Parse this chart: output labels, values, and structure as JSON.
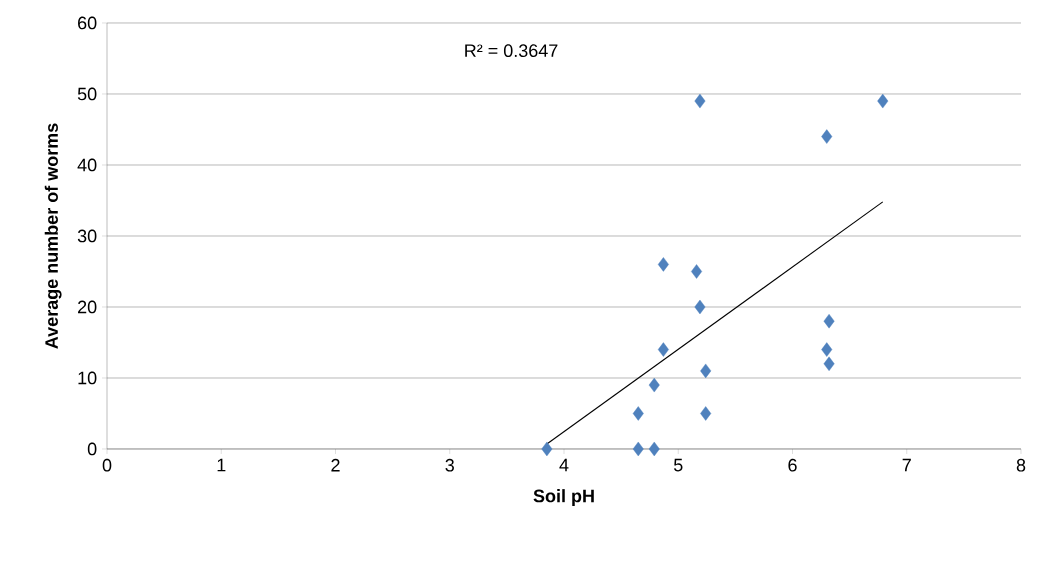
{
  "chart_data": {
    "type": "scatter",
    "xlabel": "Soil pH",
    "ylabel": "Average number of worms",
    "annotations": [
      "R² = 0.3647"
    ],
    "xlim": [
      0,
      8
    ],
    "xticks": [
      0,
      1,
      2,
      3,
      4,
      5,
      6,
      7,
      8
    ],
    "ylim": [
      0,
      60
    ],
    "yticks": [
      0,
      10,
      20,
      30,
      40,
      50,
      60
    ],
    "grid": "y",
    "series": [
      {
        "color": "#4f81bd",
        "marker": "diamond",
        "x": [
          3.85,
          4.65,
          4.79,
          4.65,
          4.79,
          4.87,
          4.87,
          5.16,
          5.19,
          5.19,
          5.24,
          5.24,
          6.3,
          6.79,
          6.32,
          6.3,
          6.32
        ],
        "values": [
          0,
          0,
          0,
          5,
          9,
          14,
          26,
          25,
          20,
          49,
          11,
          5,
          44,
          49,
          18,
          14,
          12
        ]
      },
      {
        "type": "line",
        "color": "#000000",
        "marker": "none",
        "line_style": "solid",
        "x": [
          3.85,
          6.79
        ],
        "values": [
          0.7,
          34.8
        ]
      }
    ]
  }
}
